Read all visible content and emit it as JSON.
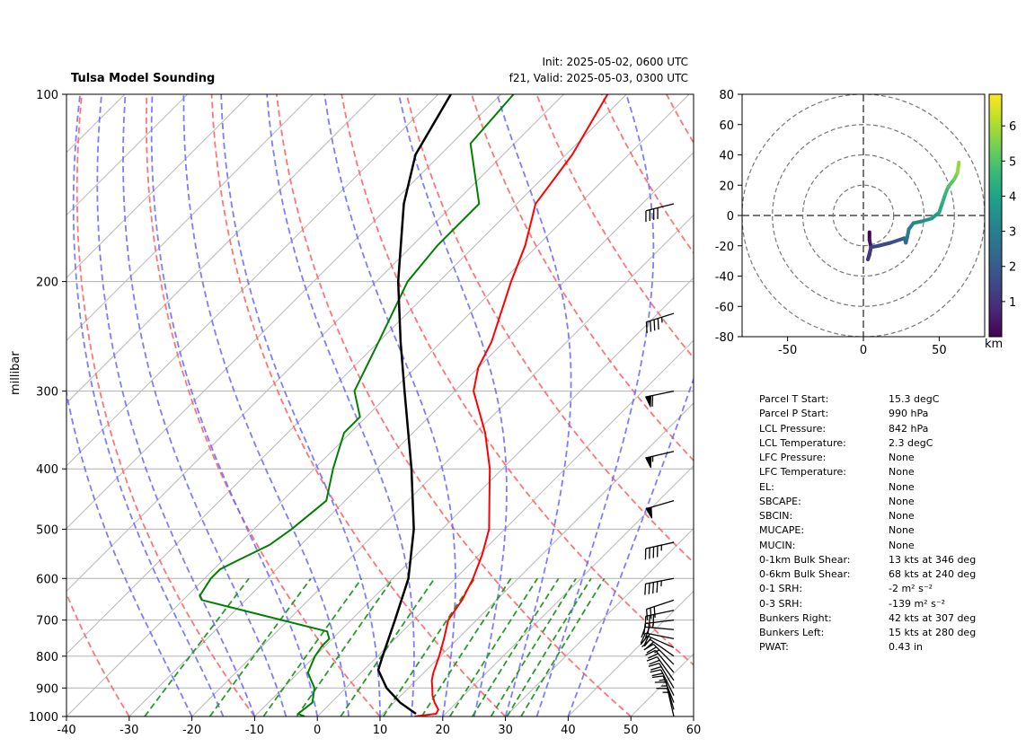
{
  "title": "Tulsa Model Sounding",
  "init_text": "Init: 2025-05-02, 0600 UTC",
  "valid_text": "f21, Valid: 2025-05-03, 0300 UTC",
  "ylabel": "millibar",
  "chart_data": [
    {
      "type": "skew-t",
      "xlim": [
        -40,
        60
      ],
      "ylim": [
        1000,
        100
      ],
      "x_ticks": [
        -40,
        -30,
        -20,
        -10,
        0,
        10,
        20,
        30,
        40,
        50,
        60
      ],
      "y_ticks": [
        1000,
        900,
        800,
        700,
        600,
        500,
        400,
        300,
        200,
        100
      ],
      "y_scale": "log",
      "ylabel": "millibar",
      "colors": {
        "temperature": "#ff0000",
        "dewpoint": "#008000",
        "parcel": "#000000",
        "dry_adiabat": "#ff6666",
        "moist_adiabat": "#6666ff",
        "mixing_ratio": "#2a9a2a"
      },
      "temperature": {
        "p": [
          1000,
          990,
          975,
          950,
          925,
          900,
          875,
          850,
          800,
          750,
          700,
          650,
          600,
          550,
          500,
          450,
          400,
          350,
          300,
          275,
          250,
          200,
          175,
          150,
          125,
          100
        ],
        "t": [
          15.5,
          18.5,
          18.2,
          16.5,
          15.0,
          13.8,
          12.5,
          11.5,
          9.8,
          7.8,
          5.5,
          4.5,
          2.8,
          0.5,
          -2.5,
          -7.0,
          -12.0,
          -18.5,
          -27.0,
          -30.0,
          -32.0,
          -38.5,
          -42.0,
          -47.0,
          -49.0,
          -53.0
        ]
      },
      "dewpoint": {
        "p": [
          1000,
          990,
          950,
          900,
          850,
          800,
          770,
          750,
          730,
          650,
          640,
          600,
          580,
          560,
          530,
          500,
          450,
          400,
          350,
          330,
          300,
          250,
          200,
          175,
          150,
          120,
          100
        ],
        "td": [
          -2.0,
          -3.5,
          -3.0,
          -5.0,
          -8.5,
          -10.0,
          -10.5,
          -10.5,
          -12.0,
          -37.0,
          -38.0,
          -39.0,
          -39.0,
          -37.5,
          -35.0,
          -34.0,
          -33.0,
          -37.0,
          -41.0,
          -41.0,
          -46.0,
          -50.0,
          -55.0,
          -56.0,
          -56.0,
          -67.0,
          -68.0
        ]
      },
      "parcel": {
        "p": [
          990,
          950,
          900,
          842,
          800,
          700,
          600,
          500,
          400,
          300,
          250,
          200,
          150,
          125,
          100
        ],
        "t": [
          15.3,
          11.0,
          6.5,
          2.3,
          0.8,
          -3.0,
          -7.5,
          -14.5,
          -24.5,
          -38.0,
          -46.5,
          -56.5,
          -68.0,
          -74.0,
          -78.0
        ]
      },
      "wind_barbs": {
        "p": [
          1000,
          975,
          950,
          925,
          900,
          875,
          850,
          825,
          800,
          775,
          750,
          725,
          700,
          675,
          650,
          600,
          525,
          450,
          375,
          300,
          225,
          150
        ],
        "u": [
          3,
          4,
          6,
          8,
          10,
          12,
          14,
          16,
          17,
          18,
          20,
          22,
          25,
          28,
          30,
          42,
          45,
          48,
          52,
          58,
          45,
          40
        ],
        "v": [
          -13,
          -14,
          -15,
          -16,
          -17,
          -17,
          -17,
          -16,
          -12,
          -8,
          -4,
          -2,
          3,
          6,
          10,
          8,
          10,
          14,
          12,
          12,
          14,
          10
        ]
      }
    },
    {
      "type": "hodograph",
      "xlim": [
        -80,
        80
      ],
      "ylim": [
        -80,
        80
      ],
      "x_ticks": [
        -50,
        0,
        50
      ],
      "y_ticks": [
        -80,
        -60,
        -40,
        -20,
        0,
        20,
        40,
        60,
        80
      ],
      "rings": [
        20,
        40,
        60,
        80
      ],
      "colorbar_ticks": [
        1,
        2,
        3,
        4,
        5,
        6
      ],
      "colorbar_label": "km",
      "colorbar_range": [
        0,
        6.9
      ],
      "path": {
        "u": [
          4,
          4,
          5,
          4,
          3,
          5,
          10,
          18,
          24,
          27,
          28,
          29,
          30,
          33,
          38,
          45,
          50,
          52,
          54,
          56,
          60,
          62,
          63
        ],
        "v": [
          -11,
          -16,
          -21,
          -26,
          -29,
          -21,
          -20,
          -18,
          -16,
          -15,
          -18,
          -14,
          -9,
          -5,
          -4,
          -2,
          2,
          8,
          14,
          19,
          24,
          28,
          35
        ],
        "h": [
          0.0,
          0.3,
          0.6,
          0.9,
          1.1,
          1.3,
          1.5,
          1.7,
          1.9,
          2.2,
          2.5,
          2.8,
          3.0,
          3.2,
          3.5,
          3.8,
          4.1,
          4.4,
          4.7,
          5.0,
          5.4,
          5.8,
          6.2
        ]
      }
    }
  ],
  "params": [
    {
      "label": "Parcel T Start:",
      "value": "15.3 degC"
    },
    {
      "label": "Parcel P Start:",
      "value": "990 hPa"
    },
    {
      "label": "LCL Pressure:",
      "value": "842 hPa"
    },
    {
      "label": "LCL Temperature:",
      "value": "2.3 degC"
    },
    {
      "label": "LFC Pressure:",
      "value": "None"
    },
    {
      "label": "LFC Temperature:",
      "value": "None"
    },
    {
      "label": "EL:",
      "value": "None"
    },
    {
      "label": "SBCAPE:",
      "value": "None"
    },
    {
      "label": "SBCIN:",
      "value": "None"
    },
    {
      "label": "MUCAPE:",
      "value": "None"
    },
    {
      "label": "MUCIN:",
      "value": "None"
    },
    {
      "label": "0-1km Bulk Shear:",
      "value": "13 kts at 346 deg"
    },
    {
      "label": "0-6km Bulk Shear:",
      "value": "68 kts at 240 deg"
    },
    {
      "label": "0-1 SRH:",
      "value": "-2 m² s⁻²"
    },
    {
      "label": "0-3 SRH:",
      "value": "-139 m² s⁻²"
    },
    {
      "label": "Bunkers Right:",
      "value": "42 kts at 307 deg"
    },
    {
      "label": "Bunkers Left:",
      "value": "15 kts at 280 deg"
    },
    {
      "label": "PWAT:",
      "value": "0.43 in"
    }
  ]
}
